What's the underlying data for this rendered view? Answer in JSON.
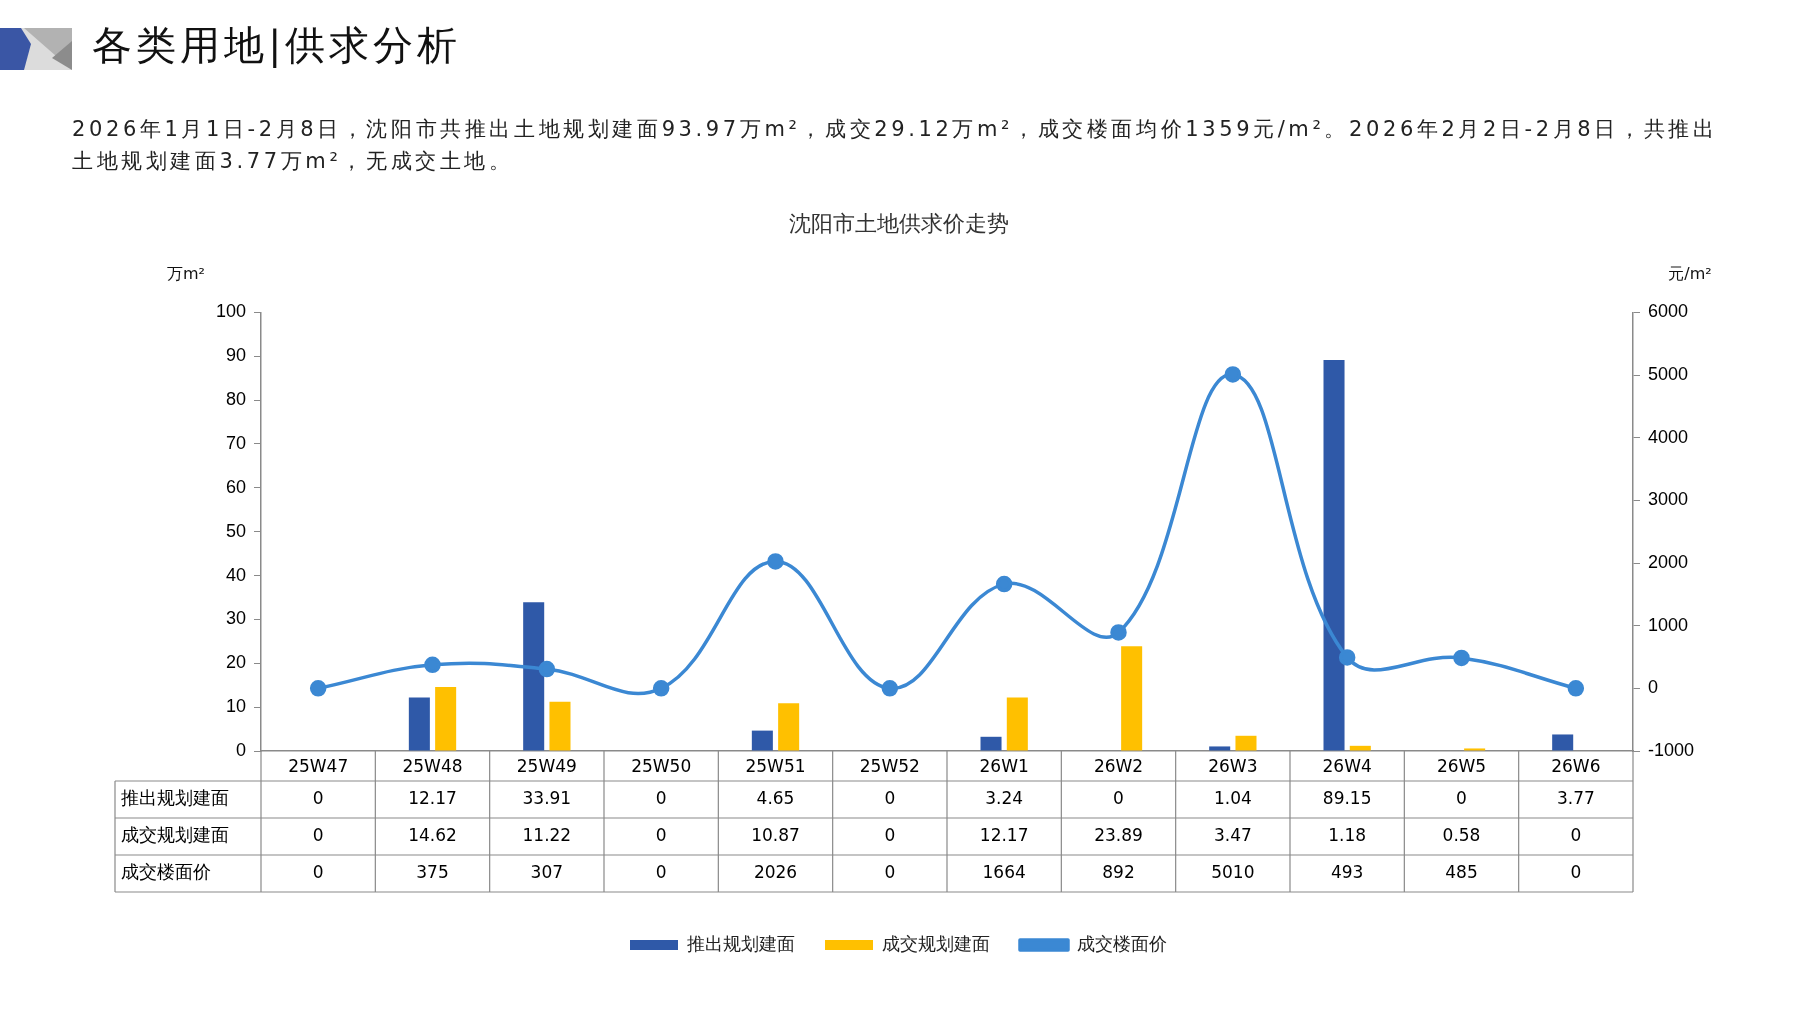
{
  "chart_data": {
    "type": "bar",
    "title": "沈阳市土地供求价走势",
    "ylabel": "万m²",
    "y2label": "元/m²",
    "annotations": [
      "各类用地|供求分析",
      "2026年1月1日-2月8日，沈阳市共推出土地规划建面93.97万m²，成交29.12万m²，成交楼面均价1359元/m²。2026年2月2日-2月8日，共推出土地规划建面3.77万m²，无成交土地。"
    ],
    "categories": [
      "25W47",
      "25W48",
      "25W49",
      "25W50",
      "25W51",
      "25W52",
      "26W1",
      "26W2",
      "26W3",
      "26W4",
      "26W5",
      "26W6"
    ],
    "series": [
      {
        "name": "推出规划建面",
        "color": "#2f59a8",
        "values": [
          0,
          12.17,
          33.91,
          0,
          4.65,
          0,
          3.24,
          0,
          1.04,
          89.15,
          0,
          3.77
        ]
      },
      {
        "name": "成交规划建面",
        "color": "#ffc000",
        "values": [
          0,
          14.62,
          11.22,
          0,
          10.87,
          0,
          12.17,
          23.89,
          3.47,
          1.18,
          0.58,
          0
        ]
      },
      {
        "name": "成交楼面价",
        "type": "line",
        "axis": "y2",
        "color": "#3b88d3",
        "marker": "circle",
        "values": [
          0,
          375,
          307,
          0,
          2026,
          0,
          1664,
          892,
          5010,
          493,
          485,
          0
        ]
      }
    ],
    "ylim": [
      0,
      100
    ],
    "yticks": [
      0,
      10,
      20,
      30,
      40,
      50,
      60,
      70,
      80,
      90,
      100
    ],
    "y2lim": [
      -1000,
      6000
    ],
    "y2ticks": [
      -1000,
      0,
      1000,
      2000,
      3000,
      4000,
      5000,
      6000
    ],
    "grid": false,
    "legend": "bottom",
    "data_labels": true
  }
}
